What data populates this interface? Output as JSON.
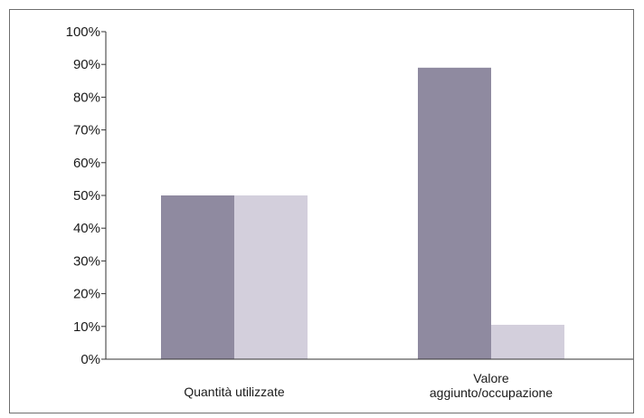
{
  "chart_data": {
    "type": "bar",
    "categories": [
      "Quantità utilizzate",
      "Valore\naggiunto/occupazione"
    ],
    "series": [
      {
        "values": [
          50,
          89
        ]
      },
      {
        "values": [
          50,
          10.5
        ]
      }
    ],
    "title": "",
    "xlabel": "",
    "ylabel": "",
    "ylim": [
      0,
      100
    ],
    "yticks": [
      0,
      10,
      20,
      30,
      40,
      50,
      60,
      70,
      80,
      90,
      100
    ],
    "ytick_labels": [
      "0%",
      "10%",
      "20%",
      "30%",
      "40%",
      "50%",
      "60%",
      "70%",
      "80%",
      "90%",
      "100%"
    ],
    "grid": false,
    "legend": "none",
    "colors": [
      "#8f8aa0",
      "#d3cfdc"
    ]
  }
}
